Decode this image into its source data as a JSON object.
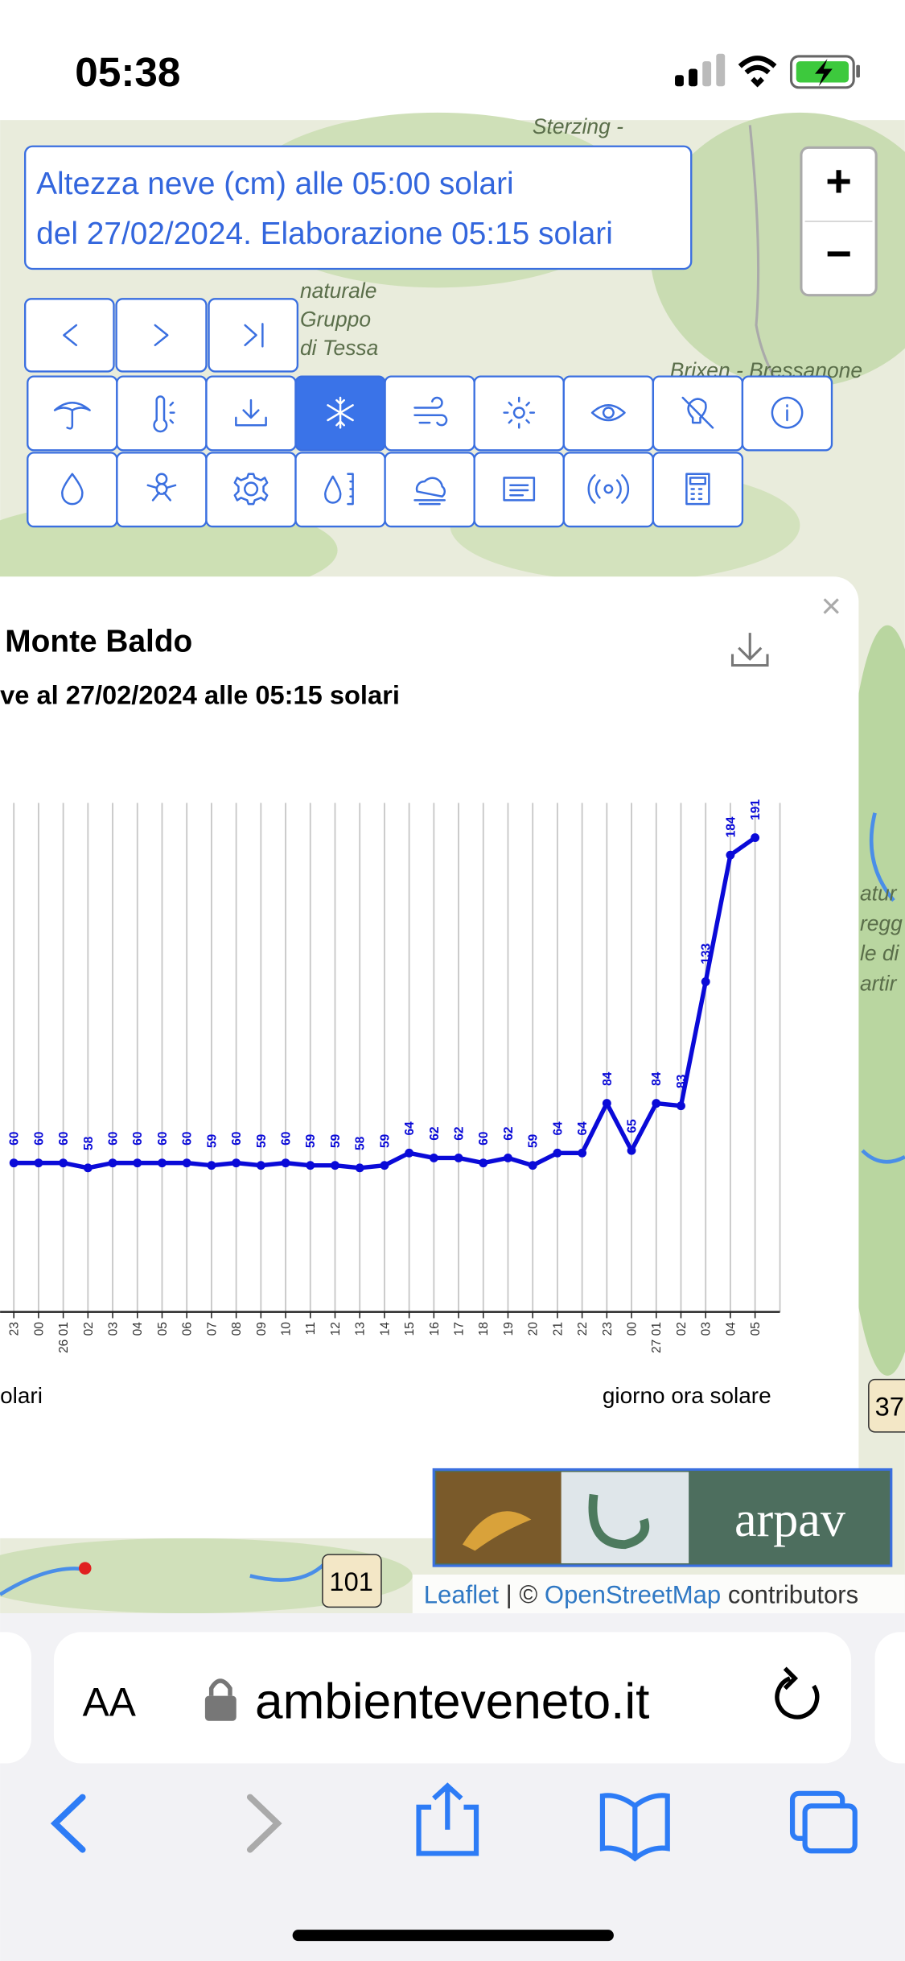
{
  "status_bar": {
    "time": "05:38"
  },
  "map": {
    "info": [
      "Altezza neve (cm) alle 05:00 solari",
      "del 27/02/2024. Elaborazione 05:15 solari"
    ],
    "zoom_in": "+",
    "zoom_out": "−",
    "labels": [
      "Sterzing -",
      "naturale",
      "Gruppo",
      "di Tessa",
      "Brixen - Bressanone",
      "atur",
      "regg",
      "le di",
      "artir"
    ],
    "road_left": "101",
    "road_right": "37",
    "logo": "arpav",
    "attribution": {
      "leaflet": "Leaflet",
      "sep": "| ©",
      "osm": "OpenStreetMap",
      "rest": "contributors"
    },
    "close": "×"
  },
  "chart_data": {
    "type": "line",
    "title": "Monte Baldo",
    "subtitle": "ve al 27/02/2024 alle 05:15 solari",
    "x_label": "giorno ora solare",
    "x_label_left": "olari",
    "categories": [
      "23",
      "00",
      "26 01",
      "02",
      "03",
      "04",
      "05",
      "06",
      "07",
      "08",
      "09",
      "10",
      "11",
      "12",
      "13",
      "14",
      "15",
      "16",
      "17",
      "18",
      "19",
      "20",
      "21",
      "22",
      "23",
      "00",
      "27 01",
      "02",
      "03",
      "04",
      "05"
    ],
    "values": [
      60,
      60,
      60,
      58,
      60,
      60,
      60,
      60,
      59,
      60,
      59,
      60,
      59,
      59,
      58,
      59,
      64,
      62,
      62,
      60,
      62,
      59,
      64,
      64,
      84,
      65,
      84,
      83,
      133,
      184,
      191
    ],
    "color": "#0a0ad8",
    "ylim": [
      0,
      205
    ],
    "grid": true
  },
  "browser": {
    "text_size": "AA",
    "url": "ambienteveneto.it"
  }
}
